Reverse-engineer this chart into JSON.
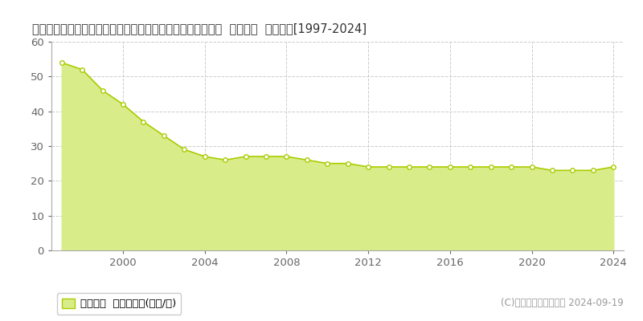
{
  "title": "東京都西多摩郡瑞穂町大字駒形富士山字稲荷林３８６番１８  基準地価  地価推移[1997-2024]",
  "years": [
    1997,
    1998,
    1999,
    2000,
    2001,
    2002,
    2003,
    2004,
    2005,
    2006,
    2007,
    2008,
    2009,
    2010,
    2011,
    2012,
    2013,
    2014,
    2015,
    2016,
    2017,
    2018,
    2019,
    2020,
    2021,
    2022,
    2023,
    2024
  ],
  "values": [
    54,
    52,
    46,
    42,
    37,
    33,
    29,
    27,
    26,
    27,
    27,
    27,
    26,
    25,
    25,
    24,
    24,
    24,
    24,
    24,
    24,
    24,
    24,
    24,
    23,
    23,
    23,
    24
  ],
  "line_color": "#aacc00",
  "fill_color": "#d8ed8a",
  "marker_face": "#ffffff",
  "marker_edge": "#aacc00",
  "background_color": "#ffffff",
  "grid_color": "#cccccc",
  "ylim": [
    0,
    60
  ],
  "yticks": [
    0,
    10,
    20,
    30,
    40,
    50,
    60
  ],
  "xticks": [
    2000,
    2004,
    2008,
    2012,
    2016,
    2020,
    2024
  ],
  "legend_label": "基準地価  平均坪単価(万円/坪)",
  "copyright_text": "(C)土地価格ドットコム 2024-09-19",
  "title_fontsize": 10.5,
  "tick_fontsize": 9.5,
  "legend_fontsize": 9.5,
  "copyright_fontsize": 8.5
}
